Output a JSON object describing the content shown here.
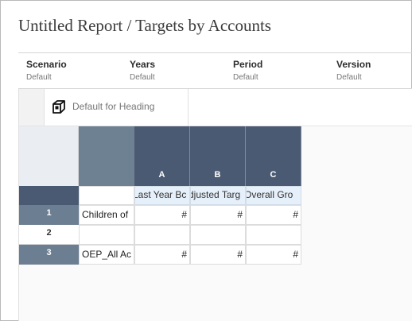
{
  "report": {
    "title": "Untitled Report / Targets by Accounts"
  },
  "pov": [
    {
      "label": "Scenario",
      "value": "Default"
    },
    {
      "label": "Years",
      "value": "Default"
    },
    {
      "label": "Period",
      "value": "Default"
    },
    {
      "label": "Version",
      "value": "Default"
    }
  ],
  "toolbar": {
    "heading_label": "Default for Heading",
    "icon": "cube-icon"
  },
  "grid": {
    "columns": [
      {
        "letter": "A",
        "title": "Last Year Bc"
      },
      {
        "letter": "B",
        "title": "djusted Targ"
      },
      {
        "letter": "C",
        "title": "Overall Gro"
      }
    ],
    "rows": [
      {
        "num": "1",
        "label": "Children of",
        "values": [
          "#",
          "#",
          "#"
        ]
      },
      {
        "num": "2",
        "label": "",
        "values": [
          "",
          "",
          ""
        ]
      },
      {
        "num": "3",
        "label": "OEP_All Ac",
        "values": [
          "#",
          "#",
          "#"
        ]
      }
    ]
  },
  "colors": {
    "column_header": "#4b5a73",
    "row_header": "#6c7e92",
    "column_title_bg": "#e6f0fa"
  }
}
